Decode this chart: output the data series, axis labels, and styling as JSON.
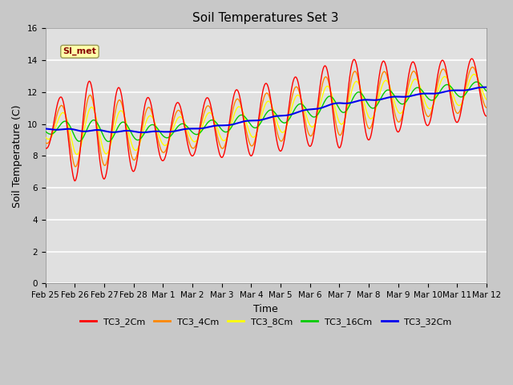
{
  "title": "Soil Temperatures Set 3",
  "xlabel": "Time",
  "ylabel": "Soil Temperature (C)",
  "ylim": [
    0,
    16
  ],
  "yticks": [
    0,
    2,
    4,
    6,
    8,
    10,
    12,
    14,
    16
  ],
  "x_labels": [
    "Feb 25",
    "Feb 26",
    "Feb 27",
    "Feb 28",
    "Mar 1",
    "Mar 2",
    "Mar 3",
    "Mar 4",
    "Mar 5",
    "Mar 6",
    "Mar 7",
    "Mar 8",
    "Mar 9",
    "Mar 10",
    "Mar 11",
    "Mar 12"
  ],
  "annotation": "SI_met",
  "line_colors": [
    "#ff0000",
    "#ff8800",
    "#ffff00",
    "#00cc00",
    "#0000ee"
  ],
  "line_labels": [
    "TC3_2Cm",
    "TC3_4Cm",
    "TC3_8Cm",
    "TC3_16Cm",
    "TC3_32Cm"
  ],
  "line_widths": [
    1.0,
    1.0,
    1.0,
    1.0,
    1.5
  ],
  "title_fontsize": 11,
  "axis_label_fontsize": 9,
  "tick_fontsize": 7.5
}
